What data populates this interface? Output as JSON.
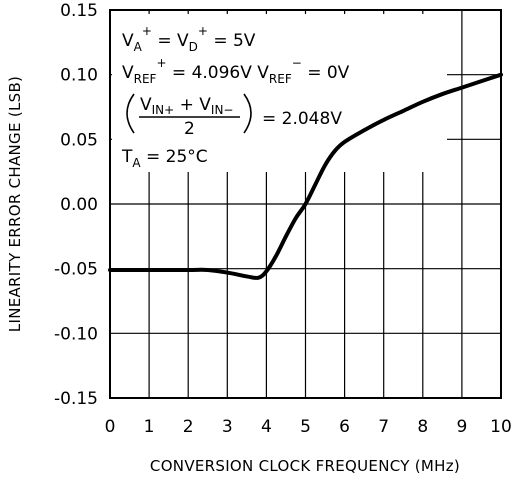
{
  "chart_data": {
    "type": "line",
    "xlabel": "CONVERSION CLOCK FREQUENCY (MHz)",
    "ylabel": "LINEARITY ERROR CHANGE (LSB)",
    "xlim": [
      0,
      10
    ],
    "ylim": [
      -0.15,
      0.15
    ],
    "x_ticks": [
      "0",
      "1",
      "2",
      "3",
      "4",
      "5",
      "6",
      "7",
      "8",
      "9",
      "10"
    ],
    "y_ticks": [
      "-0.15",
      "-0.10",
      "-0.05",
      "0.00",
      "0.05",
      "0.10",
      "0.15"
    ],
    "grid": true,
    "series": [
      {
        "x": [
          0,
          1,
          2,
          2.5,
          3,
          3.5,
          3.8,
          4.0,
          4.25,
          4.5,
          4.75,
          5.0,
          5.25,
          5.5,
          5.75,
          6.0,
          6.5,
          7.0,
          7.5,
          8.0,
          8.5,
          9.0,
          9.5,
          10.0
        ],
        "y": [
          -0.051,
          -0.051,
          -0.051,
          -0.051,
          -0.053,
          -0.056,
          -0.057,
          -0.052,
          -0.04,
          -0.025,
          -0.011,
          0.0,
          0.015,
          0.03,
          0.041,
          0.048,
          0.057,
          0.065,
          0.072,
          0.079,
          0.085,
          0.09,
          0.095,
          0.1
        ]
      }
    ],
    "annotations": {
      "line1": {
        "a": "V",
        "a_sub": "A",
        "a_sup": "+",
        "b": " = V",
        "b_sub": "D",
        "b_sup": "+",
        "c": " = 5V"
      },
      "line2": {
        "a": "V",
        "a_sub": "REF",
        "a_sup": "+",
        "b": " = 4.096V   V",
        "b_sub": "REF",
        "b_sup": "−",
        "c": " = 0V"
      },
      "line3": {
        "num": "V",
        "num_sub1": "IN+",
        "num_mid": " + V",
        "num_sub2": "IN−",
        "den": "2",
        "rhs": "= 2.048V"
      },
      "line4": {
        "a": "T",
        "a_sub": "A",
        "b": " = 25°C"
      }
    }
  }
}
